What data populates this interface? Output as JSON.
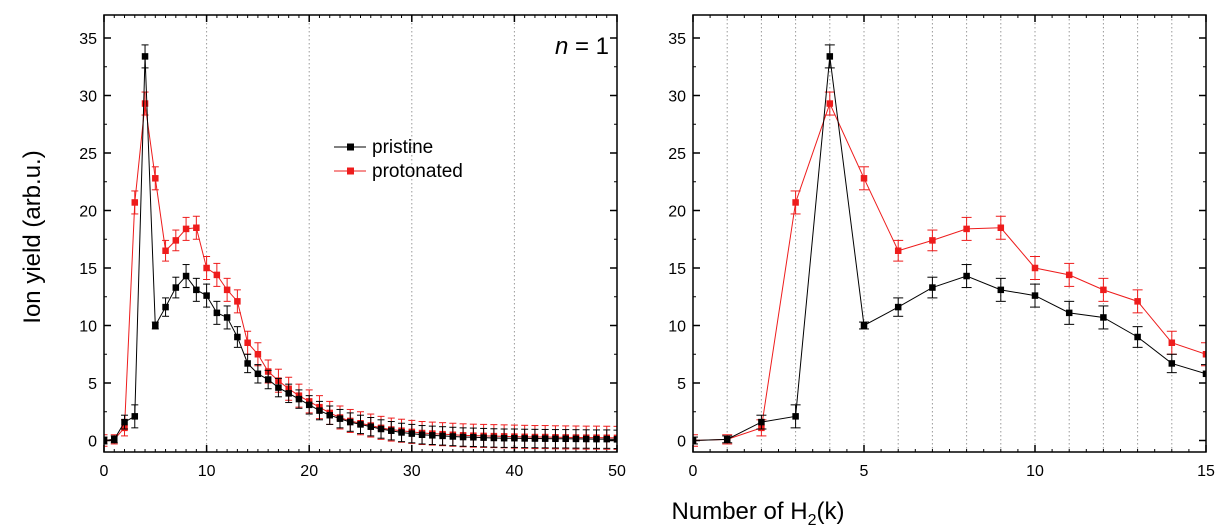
{
  "figure": {
    "ylabel": "Ion yield (arb.u.)",
    "xlabel": {
      "prefix": "Number of H",
      "sub": "2",
      "suffix": "(k)"
    }
  },
  "chart_data": [
    {
      "type": "line",
      "annotation": {
        "italic": "n",
        "rest": " = 1"
      },
      "xlim": [
        0,
        50
      ],
      "ylim": [
        -1,
        37
      ],
      "xticks": [
        0,
        10,
        20,
        30,
        40,
        50
      ],
      "yticks": [
        0,
        5,
        10,
        15,
        20,
        25,
        30,
        35
      ],
      "grid": "vertical dotted at major x ticks",
      "legend_position": "upper-middle",
      "series": [
        {
          "name": "pristine",
          "color": "#000000",
          "x": [
            0,
            1,
            2,
            3,
            4,
            5,
            6,
            7,
            8,
            9,
            10,
            11,
            12,
            13,
            14,
            15,
            16,
            17,
            18,
            19,
            20,
            21,
            22,
            23,
            24,
            25,
            26,
            27,
            28,
            29,
            30,
            31,
            32,
            33,
            34,
            35,
            36,
            37,
            38,
            39,
            40,
            41,
            42,
            43,
            44,
            45,
            46,
            47,
            48,
            49,
            50
          ],
          "y": [
            0,
            0.1,
            1.6,
            2.1,
            33.4,
            10.0,
            11.6,
            13.3,
            14.3,
            13.1,
            12.6,
            11.1,
            10.7,
            9.0,
            6.7,
            5.8,
            5.3,
            4.6,
            4.1,
            3.6,
            3.1,
            2.6,
            2.2,
            1.9,
            1.6,
            1.4,
            1.2,
            1.0,
            0.85,
            0.7,
            0.6,
            0.5,
            0.45,
            0.4,
            0.35,
            0.3,
            0.28,
            0.25,
            0.22,
            0.2,
            0.2,
            0.18,
            0.17,
            0.16,
            0.15,
            0.15,
            0.14,
            0.13,
            0.12,
            0.12,
            0.1
          ],
          "err": [
            0.3,
            0.3,
            0.6,
            1.0,
            1.0,
            0.3,
            0.8,
            0.9,
            1.0,
            1.0,
            1.0,
            1.0,
            1.0,
            0.9,
            0.8,
            0.8,
            0.8,
            0.8,
            0.8,
            0.8,
            0.8,
            0.8,
            0.8,
            0.8,
            0.8,
            0.8,
            0.8,
            0.8,
            0.8,
            0.8,
            0.8,
            0.8,
            0.8,
            0.8,
            0.8,
            0.8,
            0.8,
            0.8,
            0.8,
            0.8,
            0.8,
            0.8,
            0.8,
            0.8,
            0.8,
            0.8,
            0.8,
            0.8,
            0.8,
            0.8,
            0.8
          ]
        },
        {
          "name": "protonated",
          "color": "#ee1c1c",
          "x": [
            0,
            1,
            2,
            3,
            4,
            5,
            6,
            7,
            8,
            9,
            10,
            11,
            12,
            13,
            14,
            15,
            16,
            17,
            18,
            19,
            20,
            21,
            22,
            23,
            24,
            25,
            26,
            27,
            28,
            29,
            30,
            31,
            32,
            33,
            34,
            35,
            36,
            37,
            38,
            39,
            40,
            41,
            42,
            43,
            44,
            45,
            46,
            47,
            48,
            49,
            50
          ],
          "y": [
            0,
            0.1,
            1.1,
            20.7,
            29.3,
            22.8,
            16.5,
            17.4,
            18.4,
            18.5,
            15.0,
            14.4,
            13.1,
            12.1,
            8.5,
            7.5,
            6.0,
            5.2,
            4.5,
            3.9,
            3.4,
            2.9,
            2.4,
            2.0,
            1.7,
            1.5,
            1.3,
            1.1,
            0.95,
            0.85,
            0.75,
            0.65,
            0.6,
            0.55,
            0.5,
            0.45,
            0.42,
            0.4,
            0.38,
            0.36,
            0.34,
            0.32,
            0.3,
            0.3,
            0.28,
            0.27,
            0.26,
            0.25,
            0.25,
            0.24,
            0.23
          ],
          "err": [
            0.5,
            0.4,
            0.7,
            1.0,
            1.0,
            1.0,
            0.9,
            0.9,
            1.0,
            1.0,
            1.0,
            1.0,
            1.0,
            1.0,
            1.0,
            1.0,
            1.0,
            1.0,
            1.0,
            1.0,
            1.0,
            1.0,
            1.0,
            1.0,
            1.0,
            1.0,
            1.0,
            1.0,
            1.0,
            1.0,
            1.0,
            1.0,
            1.0,
            1.0,
            1.0,
            1.0,
            1.0,
            1.0,
            1.0,
            1.0,
            1.0,
            1.0,
            1.0,
            1.0,
            1.0,
            1.0,
            1.0,
            1.0,
            1.0,
            1.0,
            1.0
          ]
        }
      ]
    },
    {
      "type": "line",
      "xlim": [
        0,
        15
      ],
      "ylim": [
        -1,
        37
      ],
      "xticks": [
        0,
        5,
        10,
        15
      ],
      "yticks": [
        0,
        5,
        10,
        15,
        20,
        25,
        30,
        35
      ],
      "grid": "vertical dotted at every integer x",
      "series": [
        {
          "name": "pristine",
          "color": "#000000",
          "x": [
            0,
            1,
            2,
            3,
            4,
            5,
            6,
            7,
            8,
            9,
            10,
            11,
            12,
            13,
            14,
            15
          ],
          "y": [
            0,
            0.1,
            1.6,
            2.1,
            33.4,
            10.0,
            11.6,
            13.3,
            14.3,
            13.1,
            12.6,
            11.1,
            10.7,
            9.0,
            6.7,
            5.8
          ],
          "err": [
            0.3,
            0.3,
            0.6,
            1.0,
            1.0,
            0.3,
            0.8,
            0.9,
            1.0,
            1.0,
            1.0,
            1.0,
            1.0,
            0.9,
            0.8,
            0.8
          ]
        },
        {
          "name": "protonated",
          "color": "#ee1c1c",
          "x": [
            0,
            1,
            2,
            3,
            4,
            5,
            6,
            7,
            8,
            9,
            10,
            11,
            12,
            13,
            14,
            15
          ],
          "y": [
            0,
            0.1,
            1.1,
            20.7,
            29.3,
            22.8,
            16.5,
            17.4,
            18.4,
            18.5,
            15.0,
            14.4,
            13.1,
            12.1,
            8.5,
            7.5
          ],
          "err": [
            0.5,
            0.4,
            0.7,
            1.0,
            1.0,
            1.0,
            0.9,
            0.9,
            1.0,
            1.0,
            1.0,
            1.0,
            1.0,
            1.0,
            1.0,
            1.0
          ]
        }
      ]
    }
  ]
}
